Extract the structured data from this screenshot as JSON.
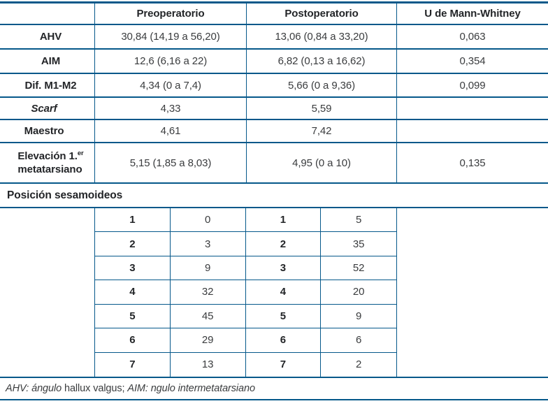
{
  "colors": {
    "rule_blue": "#05588a",
    "heading_text": "#232528",
    "body_text": "#3a3c3e"
  },
  "table": {
    "header": {
      "col0": "",
      "col1": "Preoperatorio",
      "col2": "Postoperatorio",
      "col3": "U de Mann-Whitney"
    },
    "rows": [
      {
        "label": "AHV",
        "pre": "30,84 (14,19 a 56,20)",
        "post": "13,06 (0,84 a 33,20)",
        "u": "0,063"
      },
      {
        "label": "AIM",
        "pre": "12,6 (6,16 a 22)",
        "post": "6,82 (0,13 a 16,62)",
        "u": "0,354"
      },
      {
        "label": "Dif. M1-M2",
        "pre": "4,34 (0 a 7,4)",
        "post": "5,66 (0 a 9,36)",
        "u": "0,099"
      },
      {
        "label": "Scarf",
        "pre": "4,33",
        "post": "5,59",
        "u": ""
      },
      {
        "label": "Maestro",
        "pre": "4,61",
        "post": "7,42",
        "u": ""
      },
      {
        "label_line1": "Elevación 1.",
        "label_sup": "er",
        "label_line2": "metatarsiano",
        "pre": "5,15 (1,85 a 8,03)",
        "post": "4,95 (0 a 10)",
        "u": "0,135"
      }
    ],
    "section_header": "Posición sesamoideos",
    "sesamoids": [
      {
        "pos_pre": "1",
        "n_pre": "0",
        "pos_post": "1",
        "n_post": "5"
      },
      {
        "pos_pre": "2",
        "n_pre": "3",
        "pos_post": "2",
        "n_post": "35"
      },
      {
        "pos_pre": "3",
        "n_pre": "9",
        "pos_post": "3",
        "n_post": "52"
      },
      {
        "pos_pre": "4",
        "n_pre": "32",
        "pos_post": "4",
        "n_post": "20"
      },
      {
        "pos_pre": "5",
        "n_pre": "45",
        "pos_post": "5",
        "n_post": "9"
      },
      {
        "pos_pre": "6",
        "n_pre": "29",
        "pos_post": "6",
        "n_post": "6"
      },
      {
        "pos_pre": "7",
        "n_pre": "13",
        "pos_post": "7",
        "n_post": "2"
      }
    ],
    "footnote": {
      "italic1": "AHV: ángulo ",
      "regular": "hallux valgus; ",
      "italic2": "AIM: ngulo intermetatarsiano"
    }
  }
}
